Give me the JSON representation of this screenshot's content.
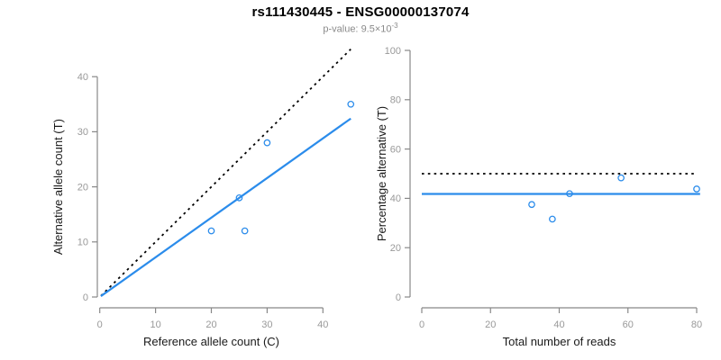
{
  "header": {
    "title": "rs111430445 - ENSG00000137074",
    "subtitle_prefix": "p-value: ",
    "subtitle_base": "9.5×10",
    "subtitle_exponent": "-3"
  },
  "colors": {
    "accent_blue": "#2b8ceb",
    "line_black": "#000000",
    "axis_gray": "#888888",
    "tick_text_gray": "#999999",
    "label_black": "#1a1a1a",
    "subtitle_gray": "#8a8a8a",
    "background": "#ffffff"
  },
  "chart_data": [
    {
      "type": "scatter",
      "name": "allele-counts",
      "xlabel": "Reference allele count (C)",
      "ylabel": "Alternative allele count (T)",
      "xlim": [
        0,
        45
      ],
      "ylim": [
        0,
        45
      ],
      "xticks": [
        0,
        10,
        20,
        30,
        40
      ],
      "yticks": [
        0,
        10,
        20,
        30,
        40
      ],
      "grid": false,
      "legend": "none",
      "points": [
        [
          20,
          12
        ],
        [
          26,
          12
        ],
        [
          25,
          18
        ],
        [
          30,
          28
        ],
        [
          45,
          35
        ]
      ],
      "lines": [
        {
          "name": "identity-line",
          "style": "dotted",
          "color": "#000000",
          "from": [
            0.2,
            0.2
          ],
          "to": [
            45,
            45
          ]
        },
        {
          "name": "fit-line",
          "style": "solid",
          "color": "#2b8ceb",
          "from": [
            0.2,
            0.15
          ],
          "to": [
            45,
            32.4
          ]
        }
      ]
    },
    {
      "type": "scatter",
      "name": "percentage-alternative",
      "xlabel": "Total number of reads",
      "ylabel": "Percentage alternative (T)",
      "xlim": [
        0,
        81
      ],
      "ylim": [
        0,
        100
      ],
      "xticks": [
        0,
        20,
        40,
        60,
        80
      ],
      "yticks": [
        0,
        20,
        40,
        60,
        80,
        100
      ],
      "grid": false,
      "legend": "none",
      "points": [
        [
          32,
          37.5
        ],
        [
          38,
          31.6
        ],
        [
          43,
          41.9
        ],
        [
          58,
          48.3
        ],
        [
          80,
          43.8
        ]
      ],
      "lines": [
        {
          "name": "expected-50pct-line",
          "style": "dotted",
          "color": "#000000",
          "from": [
            0,
            50
          ],
          "to": [
            79.5,
            50
          ]
        },
        {
          "name": "mean-percentage-line",
          "style": "solid",
          "color": "#2b8ceb",
          "from": [
            0,
            41.8
          ],
          "to": [
            81,
            41.8
          ]
        }
      ]
    }
  ]
}
